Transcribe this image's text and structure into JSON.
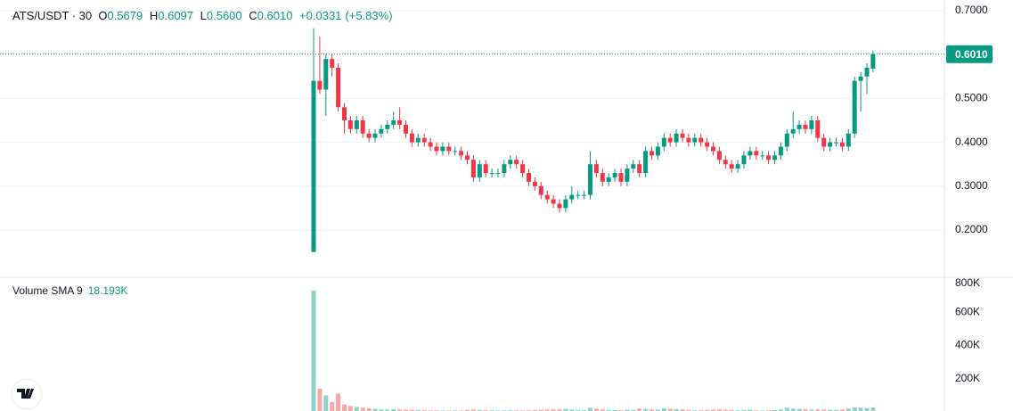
{
  "header": {
    "symbol": "ATS/USDT · 30",
    "ohlc": [
      {
        "label": "O",
        "value": "0.5679"
      },
      {
        "label": "H",
        "value": "0.6097"
      },
      {
        "label": "L",
        "value": "0.5600"
      },
      {
        "label": "C",
        "value": "0.6010"
      }
    ],
    "change": "+0.0331",
    "change_pct": "(+5.83%)"
  },
  "chart_data": [
    {
      "type": "candlestick",
      "up_color": "#089981",
      "down_color": "#f23645",
      "grid": true,
      "ylim": [
        0.0943,
        0.7244
      ],
      "yticks": [
        {
          "value": 0.7,
          "label": "0.7000"
        },
        {
          "value": 0.5,
          "label": "0.5000"
        },
        {
          "value": 0.4,
          "label": "0.4000"
        },
        {
          "value": 0.3,
          "label": "0.3000"
        },
        {
          "value": 0.2,
          "label": "0.2000"
        }
      ],
      "last_price": {
        "value": 0.601,
        "label": "0.6010"
      },
      "open": [
        0.15,
        0.54,
        0.52,
        0.59,
        0.57,
        0.48,
        0.45,
        0.43,
        0.45,
        0.42,
        0.41,
        0.42,
        0.43,
        0.44,
        0.45,
        0.44,
        0.42,
        0.4,
        0.41,
        0.4,
        0.39,
        0.38,
        0.39,
        0.38,
        0.38,
        0.37,
        0.36,
        0.32,
        0.35,
        0.33,
        0.33,
        0.33,
        0.35,
        0.36,
        0.35,
        0.33,
        0.31,
        0.3,
        0.28,
        0.27,
        0.26,
        0.25,
        0.27,
        0.28,
        0.28,
        0.28,
        0.35,
        0.33,
        0.31,
        0.32,
        0.33,
        0.31,
        0.34,
        0.35,
        0.33,
        0.38,
        0.37,
        0.39,
        0.41,
        0.4,
        0.42,
        0.41,
        0.4,
        0.41,
        0.4,
        0.39,
        0.38,
        0.36,
        0.35,
        0.34,
        0.35,
        0.37,
        0.38,
        0.37,
        0.37,
        0.36,
        0.37,
        0.39,
        0.42,
        0.43,
        0.44,
        0.43,
        0.45,
        0.41,
        0.39,
        0.4,
        0.4,
        0.39,
        0.42,
        0.54,
        0.55,
        0.5679
      ],
      "high": [
        0.66,
        0.64,
        0.6,
        0.6,
        0.58,
        0.49,
        0.46,
        0.46,
        0.46,
        0.43,
        0.43,
        0.44,
        0.45,
        0.47,
        0.48,
        0.45,
        0.43,
        0.42,
        0.42,
        0.41,
        0.4,
        0.4,
        0.4,
        0.39,
        0.39,
        0.38,
        0.37,
        0.36,
        0.36,
        0.34,
        0.34,
        0.36,
        0.37,
        0.37,
        0.36,
        0.34,
        0.32,
        0.31,
        0.29,
        0.28,
        0.27,
        0.28,
        0.3,
        0.29,
        0.29,
        0.38,
        0.36,
        0.34,
        0.33,
        0.34,
        0.34,
        0.35,
        0.36,
        0.36,
        0.39,
        0.39,
        0.4,
        0.42,
        0.42,
        0.43,
        0.43,
        0.42,
        0.42,
        0.42,
        0.41,
        0.4,
        0.39,
        0.37,
        0.36,
        0.36,
        0.38,
        0.39,
        0.39,
        0.38,
        0.38,
        0.38,
        0.4,
        0.43,
        0.47,
        0.45,
        0.45,
        0.46,
        0.46,
        0.42,
        0.41,
        0.41,
        0.41,
        0.43,
        0.55,
        0.56,
        0.58,
        0.6097
      ],
      "low": [
        0.15,
        0.51,
        0.46,
        0.55,
        0.47,
        0.42,
        0.42,
        0.42,
        0.41,
        0.4,
        0.4,
        0.41,
        0.42,
        0.43,
        0.43,
        0.41,
        0.39,
        0.39,
        0.39,
        0.38,
        0.37,
        0.37,
        0.37,
        0.37,
        0.36,
        0.35,
        0.31,
        0.31,
        0.32,
        0.32,
        0.32,
        0.32,
        0.34,
        0.34,
        0.32,
        0.3,
        0.29,
        0.27,
        0.26,
        0.25,
        0.24,
        0.24,
        0.26,
        0.27,
        0.27,
        0.27,
        0.32,
        0.3,
        0.3,
        0.31,
        0.3,
        0.3,
        0.33,
        0.32,
        0.32,
        0.36,
        0.36,
        0.38,
        0.39,
        0.39,
        0.4,
        0.39,
        0.39,
        0.39,
        0.38,
        0.37,
        0.35,
        0.34,
        0.33,
        0.33,
        0.34,
        0.36,
        0.36,
        0.36,
        0.35,
        0.35,
        0.36,
        0.38,
        0.41,
        0.42,
        0.42,
        0.42,
        0.4,
        0.38,
        0.38,
        0.39,
        0.38,
        0.38,
        0.41,
        0.47,
        0.51,
        0.56
      ],
      "close": [
        0.54,
        0.52,
        0.59,
        0.57,
        0.48,
        0.45,
        0.43,
        0.45,
        0.42,
        0.41,
        0.42,
        0.43,
        0.44,
        0.45,
        0.44,
        0.42,
        0.4,
        0.41,
        0.4,
        0.39,
        0.38,
        0.39,
        0.38,
        0.38,
        0.37,
        0.36,
        0.32,
        0.35,
        0.33,
        0.33,
        0.33,
        0.35,
        0.36,
        0.35,
        0.33,
        0.31,
        0.3,
        0.28,
        0.27,
        0.26,
        0.25,
        0.27,
        0.28,
        0.28,
        0.28,
        0.35,
        0.33,
        0.31,
        0.32,
        0.33,
        0.31,
        0.34,
        0.35,
        0.33,
        0.38,
        0.37,
        0.39,
        0.41,
        0.4,
        0.42,
        0.41,
        0.4,
        0.41,
        0.4,
        0.39,
        0.38,
        0.36,
        0.35,
        0.34,
        0.35,
        0.37,
        0.38,
        0.37,
        0.37,
        0.36,
        0.37,
        0.39,
        0.42,
        0.43,
        0.44,
        0.43,
        0.45,
        0.41,
        0.39,
        0.4,
        0.4,
        0.39,
        0.42,
        0.54,
        0.55,
        0.57,
        0.601
      ]
    },
    {
      "type": "bar",
      "title": "Volume SMA 9",
      "subtitle": "18.193K",
      "up_color": "#8fd3c6",
      "down_color": "#f7a9a7",
      "ylim": [
        0,
        800000
      ],
      "yticks": [
        {
          "value": 800000,
          "label": "800K"
        },
        {
          "value": 600000,
          "label": "600K"
        },
        {
          "value": 400000,
          "label": "400K"
        },
        {
          "value": 200000,
          "label": "200K"
        }
      ],
      "values": [
        730000,
        140000,
        100000,
        60000,
        110000,
        45000,
        35000,
        30000,
        25000,
        22000,
        18000,
        15000,
        14000,
        16000,
        15000,
        14000,
        12000,
        12000,
        11000,
        10000,
        10000,
        9000,
        9000,
        10000,
        9000,
        12000,
        14000,
        12000,
        11000,
        10000,
        9000,
        10000,
        11000,
        10000,
        9000,
        10000,
        12000,
        13000,
        14000,
        15000,
        16000,
        18000,
        14000,
        12000,
        11000,
        25000,
        20000,
        15000,
        12000,
        11000,
        10000,
        14000,
        12000,
        20000,
        18000,
        15000,
        14000,
        22000,
        18000,
        16000,
        15000,
        12000,
        11000,
        10000,
        12000,
        14000,
        15000,
        13000,
        12000,
        11000,
        12000,
        13000,
        10000,
        9000,
        10000,
        11000,
        15000,
        25000,
        20000,
        18000,
        16000,
        14000,
        15000,
        14000,
        13000,
        12000,
        14000,
        20000,
        28000,
        25000,
        22000,
        26000
      ]
    }
  ]
}
